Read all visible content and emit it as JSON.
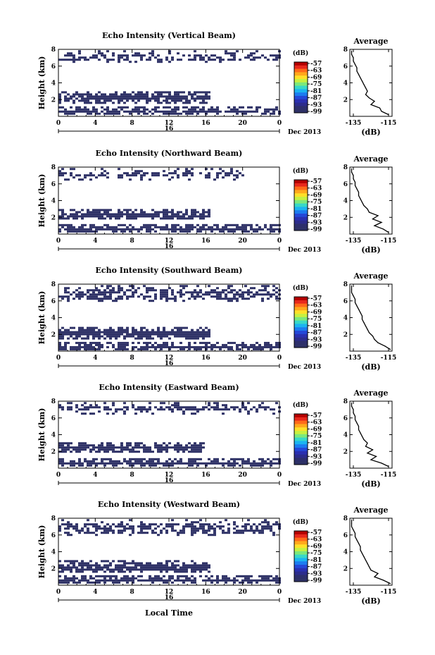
{
  "figure": {
    "x_axis_label": "Local Time",
    "colorbar_unit": "(dB)",
    "colorbar_ticks": [
      "-57",
      "-63",
      "-69",
      "-75",
      "-81",
      "-87",
      "-93",
      "-99"
    ],
    "colormap": [
      "#b40000",
      "#e8281c",
      "#ff6a1a",
      "#ffa81c",
      "#ffe028",
      "#c8f040",
      "#7ce87c",
      "#38d8c8",
      "#1cb4f0",
      "#1c7cf0",
      "#2448d8",
      "#2a30b0",
      "#2c2c8c",
      "#2d2f6c",
      "#2e3166"
    ],
    "echo_color": "#2e3166"
  },
  "chart_data": [
    {
      "type": "heatmap",
      "title": "Echo Intensity (Vertical Beam)",
      "ylabel": "Height (km)",
      "xlim": [
        0,
        24
      ],
      "ylim": [
        0,
        8
      ],
      "x_ticks": [
        "0",
        "4",
        "8",
        "12",
        "16",
        "20",
        "0"
      ],
      "y_ticks": [
        "2",
        "4",
        "6",
        "8"
      ],
      "date_day": "16",
      "date_label": "Dec 2013",
      "color_range_db": [
        -99,
        -57
      ],
      "echo_layers_km": [
        [
          0.2,
          1.2,
          24
        ],
        [
          1.7,
          3.0,
          16.5
        ],
        [
          6.5,
          7.9,
          24
        ]
      ],
      "average_profile": {
        "title": "Average",
        "xlabel": "(dB)",
        "x_ticks": [
          "-135",
          "-115"
        ],
        "xlim": [
          -137,
          -113
        ],
        "y_ticks": [
          "2",
          "4",
          "6",
          "8"
        ],
        "ylim": [
          0,
          8
        ],
        "height_km": [
          0.2,
          0.6,
          1.0,
          1.4,
          1.8,
          2.2,
          2.6,
          3.0,
          3.4,
          3.8,
          4.2,
          4.6,
          5.0,
          5.4,
          5.8,
          6.2,
          6.6,
          7.0,
          7.4,
          7.8
        ],
        "value_db": [
          -115,
          -119,
          -120,
          -125,
          -123,
          -126,
          -128,
          -127,
          -128,
          -129,
          -130,
          -131,
          -132,
          -133,
          -133,
          -134,
          -135,
          -135,
          -136,
          -136
        ]
      }
    },
    {
      "type": "heatmap",
      "title": "Echo Intensity (Northward Beam)",
      "ylabel": "Height (km)",
      "xlim": [
        0,
        24
      ],
      "ylim": [
        0,
        8
      ],
      "x_ticks": [
        "0",
        "4",
        "8",
        "12",
        "16",
        "20",
        "0"
      ],
      "y_ticks": [
        "2",
        "4",
        "6",
        "8"
      ],
      "date_day": "16",
      "date_label": "Dec 2013",
      "color_range_db": [
        -99,
        -57
      ],
      "echo_layers_km": [
        [
          0.2,
          1.2,
          24
        ],
        [
          1.8,
          3.0,
          16.5
        ],
        [
          6.6,
          7.9,
          20
        ]
      ],
      "average_profile": {
        "title": "Average",
        "xlabel": "(dB)",
        "x_ticks": [
          "-135",
          "-115"
        ],
        "xlim": [
          -137,
          -113
        ],
        "y_ticks": [
          "2",
          "4",
          "6",
          "8"
        ],
        "ylim": [
          0,
          8
        ],
        "height_km": [
          0.2,
          0.6,
          1.0,
          1.4,
          1.8,
          2.2,
          2.6,
          3.0,
          3.4,
          3.8,
          4.2,
          4.6,
          5.0,
          5.4,
          5.8,
          6.2,
          6.6,
          7.0,
          7.4,
          7.8
        ],
        "value_db": [
          -115,
          -118,
          -123,
          -119,
          -124,
          -121,
          -126,
          -127,
          -129,
          -130,
          -131,
          -132,
          -132,
          -133,
          -134,
          -134,
          -135,
          -135,
          -136,
          -136
        ]
      }
    },
    {
      "type": "heatmap",
      "title": "Echo Intensity (Southward Beam)",
      "ylabel": "Height (km)",
      "xlim": [
        0,
        24
      ],
      "ylim": [
        0,
        8
      ],
      "x_ticks": [
        "0",
        "4",
        "8",
        "12",
        "16",
        "20",
        "0"
      ],
      "y_ticks": [
        "2",
        "4",
        "6",
        "8"
      ],
      "date_day": "16",
      "date_label": "Dec 2013",
      "color_range_db": [
        -99,
        -57
      ],
      "echo_layers_km": [
        [
          0.2,
          1.1,
          24
        ],
        [
          1.5,
          2.9,
          16.5
        ],
        [
          6.0,
          7.9,
          24
        ]
      ],
      "average_profile": {
        "title": "Average",
        "xlabel": "(dB)",
        "x_ticks": [
          "-135",
          "-115"
        ],
        "xlim": [
          -137,
          -113
        ],
        "y_ticks": [
          "2",
          "4",
          "6",
          "8"
        ],
        "ylim": [
          0,
          8
        ],
        "height_km": [
          0.2,
          0.6,
          1.0,
          1.4,
          1.8,
          2.2,
          2.6,
          3.0,
          3.4,
          3.8,
          4.2,
          4.6,
          5.0,
          5.4,
          5.8,
          6.2,
          6.6,
          7.0,
          7.4,
          7.8
        ],
        "value_db": [
          -114,
          -117,
          -121,
          -123,
          -124,
          -126,
          -127,
          -128,
          -129,
          -130,
          -130,
          -131,
          -132,
          -133,
          -134,
          -134,
          -135,
          -136,
          -136,
          -136
        ]
      }
    },
    {
      "type": "heatmap",
      "title": "Echo Intensity (Eastward Beam)",
      "ylabel": "Height (km)",
      "xlim": [
        0,
        24
      ],
      "ylim": [
        0,
        8
      ],
      "x_ticks": [
        "0",
        "4",
        "8",
        "12",
        "16",
        "20",
        "0"
      ],
      "y_ticks": [
        "2",
        "4",
        "6",
        "8"
      ],
      "date_day": "16",
      "date_label": "Dec 2013",
      "color_range_db": [
        -99,
        -57
      ],
      "echo_layers_km": [
        [
          0.2,
          1.2,
          24
        ],
        [
          1.9,
          3.1,
          15.7
        ],
        [
          6.6,
          7.9,
          24
        ]
      ],
      "average_profile": {
        "title": "Average",
        "xlabel": "(dB)",
        "x_ticks": [
          "-135",
          "-115"
        ],
        "xlim": [
          -137,
          -113
        ],
        "y_ticks": [
          "2",
          "4",
          "6",
          "8"
        ],
        "ylim": [
          0,
          8
        ],
        "height_km": [
          0.2,
          0.6,
          1.0,
          1.4,
          1.8,
          2.2,
          2.6,
          3.0,
          3.4,
          3.8,
          4.2,
          4.6,
          5.0,
          5.4,
          5.8,
          6.2,
          6.6,
          7.0,
          7.4,
          7.8
        ],
        "value_db": [
          -115,
          -119,
          -125,
          -122,
          -127,
          -124,
          -128,
          -127,
          -129,
          -130,
          -131,
          -132,
          -132,
          -133,
          -134,
          -134,
          -135,
          -135,
          -136,
          -136
        ]
      }
    },
    {
      "type": "heatmap",
      "title": "Echo Intensity (Westward Beam)",
      "ylabel": "Height (km)",
      "xlim": [
        0,
        24
      ],
      "ylim": [
        0,
        8
      ],
      "x_ticks": [
        "0",
        "4",
        "8",
        "12",
        "16",
        "20",
        "0"
      ],
      "y_ticks": [
        "2",
        "4",
        "6",
        "8"
      ],
      "date_day": "16",
      "date_label": "Dec 2013",
      "color_range_db": [
        -99,
        -57
      ],
      "echo_layers_km": [
        [
          0.2,
          1.2,
          24
        ],
        [
          1.6,
          3.0,
          16.5
        ],
        [
          6.0,
          7.9,
          24
        ]
      ],
      "average_profile": {
        "title": "Average",
        "xlabel": "(dB)",
        "x_ticks": [
          "-135",
          "-115"
        ],
        "xlim": [
          -137,
          -113
        ],
        "y_ticks": [
          "2",
          "4",
          "6",
          "8"
        ],
        "ylim": [
          0,
          8
        ],
        "height_km": [
          0.2,
          0.6,
          1.0,
          1.4,
          1.8,
          2.2,
          2.6,
          3.0,
          3.4,
          3.8,
          4.2,
          4.6,
          5.0,
          5.4,
          5.8,
          6.2,
          6.6,
          7.0,
          7.4,
          7.8
        ],
        "value_db": [
          -114,
          -118,
          -123,
          -121,
          -125,
          -126,
          -127,
          -128,
          -129,
          -130,
          -131,
          -131,
          -132,
          -133,
          -134,
          -134,
          -135,
          -136,
          -136,
          -136
        ]
      }
    }
  ]
}
